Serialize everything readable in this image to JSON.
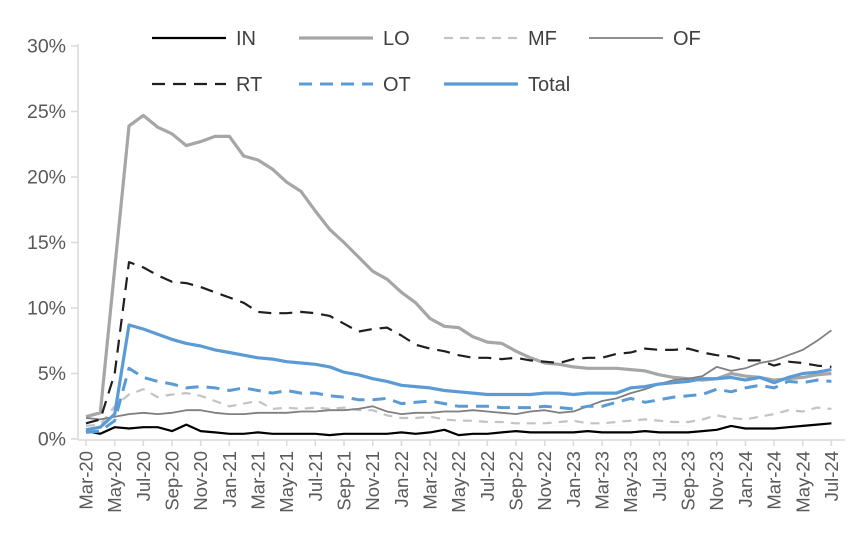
{
  "chart_data": {
    "type": "line",
    "title": "",
    "xlabel": "",
    "ylabel": "",
    "ylim": [
      0,
      30
    ],
    "grid": false,
    "legend_position": "top",
    "y_ticks": [
      "0%",
      "5%",
      "10%",
      "15%",
      "20%",
      "25%",
      "30%"
    ],
    "x": [
      "Mar-20",
      "Apr-20",
      "May-20",
      "Jun-20",
      "Jul-20",
      "Aug-20",
      "Sep-20",
      "Oct-20",
      "Nov-20",
      "Dec-20",
      "Jan-21",
      "Feb-21",
      "Mar-21",
      "Apr-21",
      "May-21",
      "Jun-21",
      "Jul-21",
      "Aug-21",
      "Sep-21",
      "Oct-21",
      "Nov-21",
      "Dec-21",
      "Jan-22",
      "Feb-22",
      "Mar-22",
      "Apr-22",
      "May-22",
      "Jun-22",
      "Jul-22",
      "Aug-22",
      "Sep-22",
      "Oct-22",
      "Nov-22",
      "Dec-22",
      "Jan-23",
      "Feb-23",
      "Mar-23",
      "Apr-23",
      "May-23",
      "Jun-23",
      "Jul-23",
      "Aug-23",
      "Sep-23",
      "Oct-23",
      "Nov-23",
      "Dec-23",
      "Jan-24",
      "Feb-24",
      "Mar-24",
      "Apr-24",
      "May-24",
      "Jun-24",
      "Jul-24"
    ],
    "x_tick_labels": [
      "Mar-20",
      "May-20",
      "Jul-20",
      "Sep-20",
      "Nov-20",
      "Jan-21",
      "Mar-21",
      "May-21",
      "Jul-21",
      "Sep-21",
      "Nov-21",
      "Jan-22",
      "Mar-22",
      "May-22",
      "Jul-22",
      "Sep-22",
      "Nov-22",
      "Jan-23",
      "Mar-23",
      "May-23",
      "Jul-23",
      "Sep-23",
      "Nov-23",
      "Jan-24",
      "Mar-24",
      "May-24",
      "Jul-24"
    ],
    "colors": {
      "axis": "#D9D9D9",
      "tick_label": "#595959",
      "legend_text": "#404040",
      "accent_blue": "#5B9BD5"
    },
    "series": [
      {
        "name": "IN",
        "color": "#000000",
        "width": 2.2,
        "dash": "none",
        "values": [
          0.6,
          0.4,
          0.9,
          0.8,
          0.9,
          0.9,
          0.6,
          1.1,
          0.6,
          0.5,
          0.4,
          0.4,
          0.5,
          0.4,
          0.4,
          0.4,
          0.4,
          0.3,
          0.4,
          0.4,
          0.4,
          0.4,
          0.5,
          0.4,
          0.5,
          0.7,
          0.3,
          0.4,
          0.4,
          0.5,
          0.6,
          0.5,
          0.5,
          0.5,
          0.5,
          0.6,
          0.5,
          0.5,
          0.5,
          0.6,
          0.5,
          0.5,
          0.5,
          0.6,
          0.7,
          1.0,
          0.8,
          0.8,
          0.8,
          0.9,
          1.0,
          1.1,
          1.2
        ]
      },
      {
        "name": "LO",
        "color": "#A6A6A6",
        "width": 3.2,
        "dash": "none",
        "values": [
          1.7,
          2.0,
          13.0,
          23.9,
          24.7,
          23.8,
          23.3,
          22.4,
          22.7,
          23.1,
          23.1,
          21.6,
          21.3,
          20.6,
          19.6,
          18.9,
          17.4,
          16.0,
          15.0,
          13.9,
          12.8,
          12.2,
          11.2,
          10.4,
          9.2,
          8.6,
          8.5,
          7.8,
          7.4,
          7.3,
          6.7,
          6.2,
          5.8,
          5.7,
          5.5,
          5.4,
          5.4,
          5.4,
          5.3,
          5.2,
          4.9,
          4.7,
          4.6,
          4.5,
          4.6,
          5.0,
          4.8,
          4.7,
          4.5,
          4.6,
          4.7,
          4.9,
          5.0
        ]
      },
      {
        "name": "MF",
        "color": "#C3C3C3",
        "width": 2.2,
        "dash": "9 7",
        "values": [
          1.0,
          1.1,
          2.5,
          3.4,
          3.8,
          3.2,
          3.4,
          3.5,
          3.3,
          2.9,
          2.5,
          2.7,
          2.9,
          2.3,
          2.4,
          2.3,
          2.4,
          2.3,
          2.4,
          2.2,
          2.2,
          1.8,
          1.6,
          1.6,
          1.7,
          1.5,
          1.4,
          1.4,
          1.3,
          1.3,
          1.2,
          1.2,
          1.2,
          1.3,
          1.4,
          1.2,
          1.2,
          1.3,
          1.4,
          1.5,
          1.4,
          1.3,
          1.3,
          1.5,
          1.8,
          1.6,
          1.5,
          1.7,
          1.9,
          2.2,
          2.1,
          2.4,
          2.3
        ]
      },
      {
        "name": "OF",
        "color": "#7F7F7F",
        "width": 1.8,
        "dash": "none",
        "values": [
          1.6,
          1.5,
          1.7,
          1.9,
          2.0,
          1.9,
          2.0,
          2.2,
          2.2,
          2.0,
          1.9,
          1.9,
          2.0,
          2.0,
          2.0,
          2.1,
          2.1,
          2.2,
          2.2,
          2.3,
          2.5,
          2.1,
          1.9,
          2.0,
          2.0,
          2.1,
          2.1,
          2.2,
          2.1,
          2.0,
          1.9,
          2.1,
          2.2,
          2.0,
          2.1,
          2.5,
          2.9,
          3.1,
          3.5,
          3.8,
          4.2,
          4.5,
          4.6,
          4.8,
          5.5,
          5.2,
          5.4,
          5.8,
          6.0,
          6.4,
          6.8,
          7.5,
          8.3
        ]
      },
      {
        "name": "RT",
        "color": "#1F1F1F",
        "width": 2.2,
        "dash": "13 8",
        "values": [
          1.2,
          1.5,
          5.0,
          13.5,
          13.1,
          12.5,
          12.0,
          11.9,
          11.6,
          11.2,
          10.8,
          10.4,
          9.7,
          9.6,
          9.6,
          9.7,
          9.6,
          9.4,
          8.8,
          8.2,
          8.4,
          8.5,
          7.9,
          7.2,
          6.9,
          6.7,
          6.4,
          6.2,
          6.2,
          6.1,
          6.2,
          6.0,
          5.9,
          5.8,
          6.1,
          6.2,
          6.2,
          6.5,
          6.6,
          6.9,
          6.8,
          6.8,
          6.9,
          6.6,
          6.4,
          6.3,
          6.0,
          6.0,
          5.6,
          5.9,
          5.8,
          5.6,
          5.5
        ]
      },
      {
        "name": "OT",
        "color": "#5B9BD5",
        "width": 3.0,
        "dash": "13 8",
        "values": [
          0.5,
          0.6,
          1.4,
          5.4,
          4.7,
          4.4,
          4.2,
          3.9,
          4.0,
          3.9,
          3.7,
          3.9,
          3.7,
          3.5,
          3.7,
          3.5,
          3.5,
          3.3,
          3.2,
          3.0,
          3.0,
          3.1,
          2.7,
          2.8,
          2.9,
          2.7,
          2.5,
          2.5,
          2.5,
          2.4,
          2.4,
          2.4,
          2.5,
          2.4,
          2.3,
          2.5,
          2.5,
          2.8,
          3.1,
          2.8,
          3.0,
          3.2,
          3.3,
          3.4,
          3.8,
          3.6,
          3.9,
          4.1,
          3.9,
          4.4,
          4.3,
          4.5,
          4.4
        ]
      },
      {
        "name": "Total",
        "color": "#5B9BD5",
        "width": 3.2,
        "dash": "none",
        "values": [
          0.7,
          0.9,
          1.9,
          8.7,
          8.4,
          8.0,
          7.6,
          7.3,
          7.1,
          6.8,
          6.6,
          6.4,
          6.2,
          6.1,
          5.9,
          5.8,
          5.7,
          5.5,
          5.1,
          4.9,
          4.6,
          4.4,
          4.1,
          4.0,
          3.9,
          3.7,
          3.6,
          3.5,
          3.4,
          3.4,
          3.4,
          3.4,
          3.5,
          3.5,
          3.4,
          3.5,
          3.5,
          3.5,
          3.9,
          4.0,
          4.2,
          4.3,
          4.4,
          4.6,
          4.6,
          4.7,
          4.5,
          4.7,
          4.3,
          4.7,
          5.0,
          5.1,
          5.3
        ]
      }
    ]
  }
}
